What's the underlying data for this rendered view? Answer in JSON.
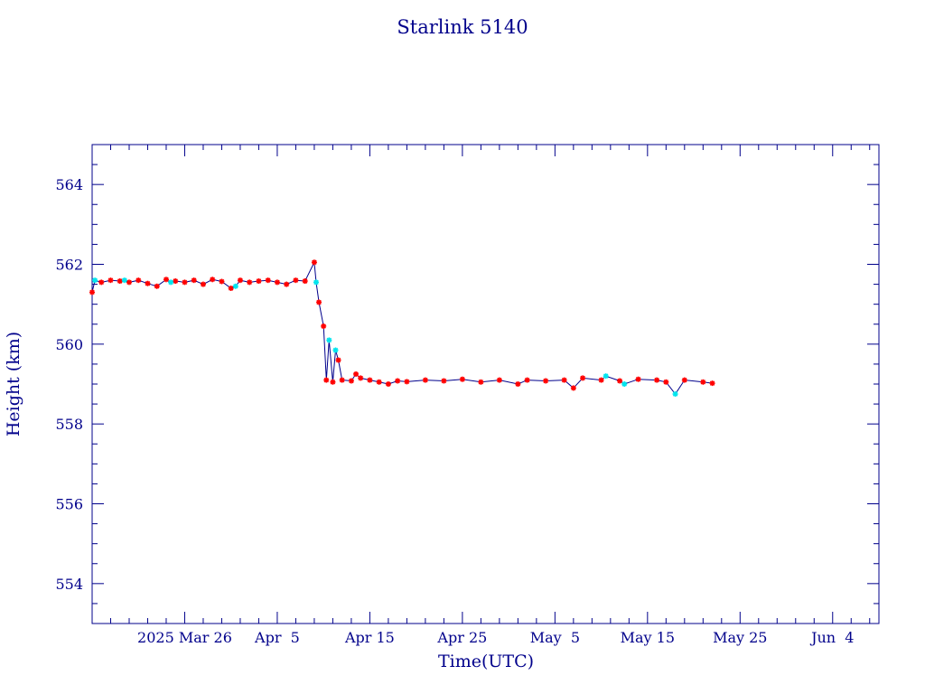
{
  "chart_data": {
    "type": "line",
    "title": "Starlink 5140",
    "xlabel": "Time(UTC)",
    "ylabel": "Height (km)",
    "xlim": [
      "2025-03-16",
      "2025-06-09"
    ],
    "ylim": [
      553,
      565
    ],
    "x_ticks": [
      {
        "date": "2025-03-26",
        "label": "2025 Mar 26"
      },
      {
        "date": "2025-04-05",
        "label": "Apr  5"
      },
      {
        "date": "2025-04-15",
        "label": "Apr 15"
      },
      {
        "date": "2025-04-25",
        "label": "Apr 25"
      },
      {
        "date": "2025-05-05",
        "label": "May  5"
      },
      {
        "date": "2025-05-15",
        "label": "May 15"
      },
      {
        "date": "2025-05-25",
        "label": "May 25"
      },
      {
        "date": "2025-06-04",
        "label": "Jun  4"
      }
    ],
    "y_ticks": [
      554,
      556,
      558,
      560,
      562,
      564
    ],
    "grid": false,
    "colors": {
      "axis": "#00008b",
      "line": "#00008b",
      "series_a": "#ff0000",
      "series_b": "#00e5ee"
    },
    "series": [
      {
        "marker": "star",
        "color": "#ff0000",
        "points": [
          [
            "2025-03-16",
            561.3
          ],
          [
            "2025-03-17",
            561.55
          ],
          [
            "2025-03-18",
            561.6
          ],
          [
            "2025-03-19",
            561.58
          ],
          [
            "2025-03-20",
            561.55
          ],
          [
            "2025-03-21",
            561.6
          ],
          [
            "2025-03-22",
            561.52
          ],
          [
            "2025-03-23",
            561.45
          ],
          [
            "2025-03-24",
            561.62
          ],
          [
            "2025-03-25",
            561.58
          ],
          [
            "2025-03-26",
            561.55
          ],
          [
            "2025-03-27",
            561.6
          ],
          [
            "2025-03-28",
            561.5
          ],
          [
            "2025-03-29",
            561.62
          ],
          [
            "2025-03-30",
            561.57
          ],
          [
            "2025-03-31",
            561.4
          ],
          [
            "2025-04-01",
            561.6
          ],
          [
            "2025-04-02",
            561.55
          ],
          [
            "2025-04-03",
            561.58
          ],
          [
            "2025-04-04",
            561.6
          ],
          [
            "2025-04-05",
            561.55
          ],
          [
            "2025-04-06",
            561.5
          ],
          [
            "2025-04-07",
            561.6
          ],
          [
            "2025-04-08",
            561.58
          ],
          [
            "2025-04-09",
            562.05
          ],
          [
            "2025-04-09.5",
            561.05
          ],
          [
            "2025-04-10",
            560.45
          ],
          [
            "2025-04-10.3",
            559.1
          ],
          [
            "2025-04-11",
            559.05
          ],
          [
            "2025-04-11.6",
            559.6
          ],
          [
            "2025-04-12",
            559.1
          ],
          [
            "2025-04-13",
            559.08
          ],
          [
            "2025-04-13.5",
            559.25
          ],
          [
            "2025-04-14",
            559.15
          ],
          [
            "2025-04-15",
            559.1
          ],
          [
            "2025-04-16",
            559.05
          ],
          [
            "2025-04-17",
            559.0
          ],
          [
            "2025-04-18",
            559.08
          ],
          [
            "2025-04-19",
            559.06
          ],
          [
            "2025-04-21",
            559.1
          ],
          [
            "2025-04-23",
            559.08
          ],
          [
            "2025-04-25",
            559.12
          ],
          [
            "2025-04-27",
            559.05
          ],
          [
            "2025-04-29",
            559.1
          ],
          [
            "2025-05-01",
            559.0
          ],
          [
            "2025-05-02",
            559.1
          ],
          [
            "2025-05-04",
            559.08
          ],
          [
            "2025-05-06",
            559.1
          ],
          [
            "2025-05-07",
            558.9
          ],
          [
            "2025-05-08",
            559.15
          ],
          [
            "2025-05-10",
            559.1
          ],
          [
            "2025-05-12",
            559.08
          ],
          [
            "2025-05-14",
            559.12
          ],
          [
            "2025-05-16",
            559.1
          ],
          [
            "2025-05-17",
            559.05
          ],
          [
            "2025-05-19",
            559.1
          ],
          [
            "2025-05-21",
            559.05
          ],
          [
            "2025-05-22",
            559.02
          ]
        ]
      },
      {
        "marker": "star",
        "color": "#00e5ee",
        "points": [
          [
            "2025-03-16.3",
            561.6
          ],
          [
            "2025-03-19.5",
            561.6
          ],
          [
            "2025-03-24.5",
            561.55
          ],
          [
            "2025-03-31.5",
            561.45
          ],
          [
            "2025-04-09.2",
            561.55
          ],
          [
            "2025-04-10.6",
            560.1
          ],
          [
            "2025-04-11.3",
            559.85
          ],
          [
            "2025-05-12.5",
            559.0
          ],
          [
            "2025-05-18",
            558.75
          ],
          [
            "2025-05-10.5",
            559.2
          ]
        ]
      }
    ]
  }
}
